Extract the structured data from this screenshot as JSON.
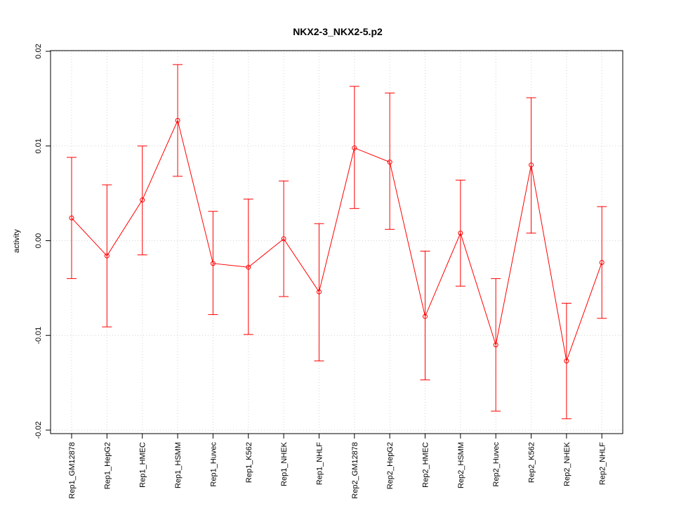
{
  "chart_data": {
    "type": "line",
    "title": "NKX2-3_NKX2-5.p2",
    "xlabel": "",
    "ylabel": "activity",
    "ylim": [
      -0.02,
      0.02
    ],
    "yticks": [
      "-0.02",
      "-0.01",
      "0.00",
      "0.01",
      "0.02"
    ],
    "ytick_values": [
      -0.02,
      -0.01,
      0.0,
      0.01,
      0.02
    ],
    "grid": true,
    "categories": [
      "Rep1_GM12878",
      "Rep1_HepG2",
      "Rep1_HMEC",
      "Rep1_HSMM",
      "Rep1_Huvec",
      "Rep1_K562",
      "Rep1_NHEK",
      "Rep1_NHLF",
      "Rep2_GM12878",
      "Rep2_HepG2",
      "Rep2_HMEC",
      "Rep2_HSMM",
      "Rep2_Huvec",
      "Rep2_K562",
      "Rep2_NHEK",
      "Rep2_NHLF"
    ],
    "series": [
      {
        "color": "#ff0000",
        "values": [
          0.0024,
          -0.0016,
          0.0043,
          0.0127,
          -0.0024,
          -0.0028,
          0.0002,
          -0.0054,
          0.0098,
          0.0083,
          -0.008,
          0.0008,
          -0.011,
          0.008,
          -0.0127,
          -0.0023
        ],
        "upper": [
          0.0088,
          0.0059,
          0.01,
          0.0186,
          0.0031,
          0.0044,
          0.0063,
          0.0018,
          0.0163,
          0.0156,
          -0.0011,
          0.0064,
          -0.004,
          0.0151,
          -0.0066,
          0.0036
        ],
        "lower": [
          -0.004,
          -0.0091,
          -0.0015,
          0.0068,
          -0.0078,
          -0.0099,
          -0.0059,
          -0.0127,
          0.0034,
          0.0012,
          -0.0147,
          -0.0048,
          -0.018,
          0.0008,
          -0.0188,
          -0.0082
        ]
      }
    ]
  }
}
